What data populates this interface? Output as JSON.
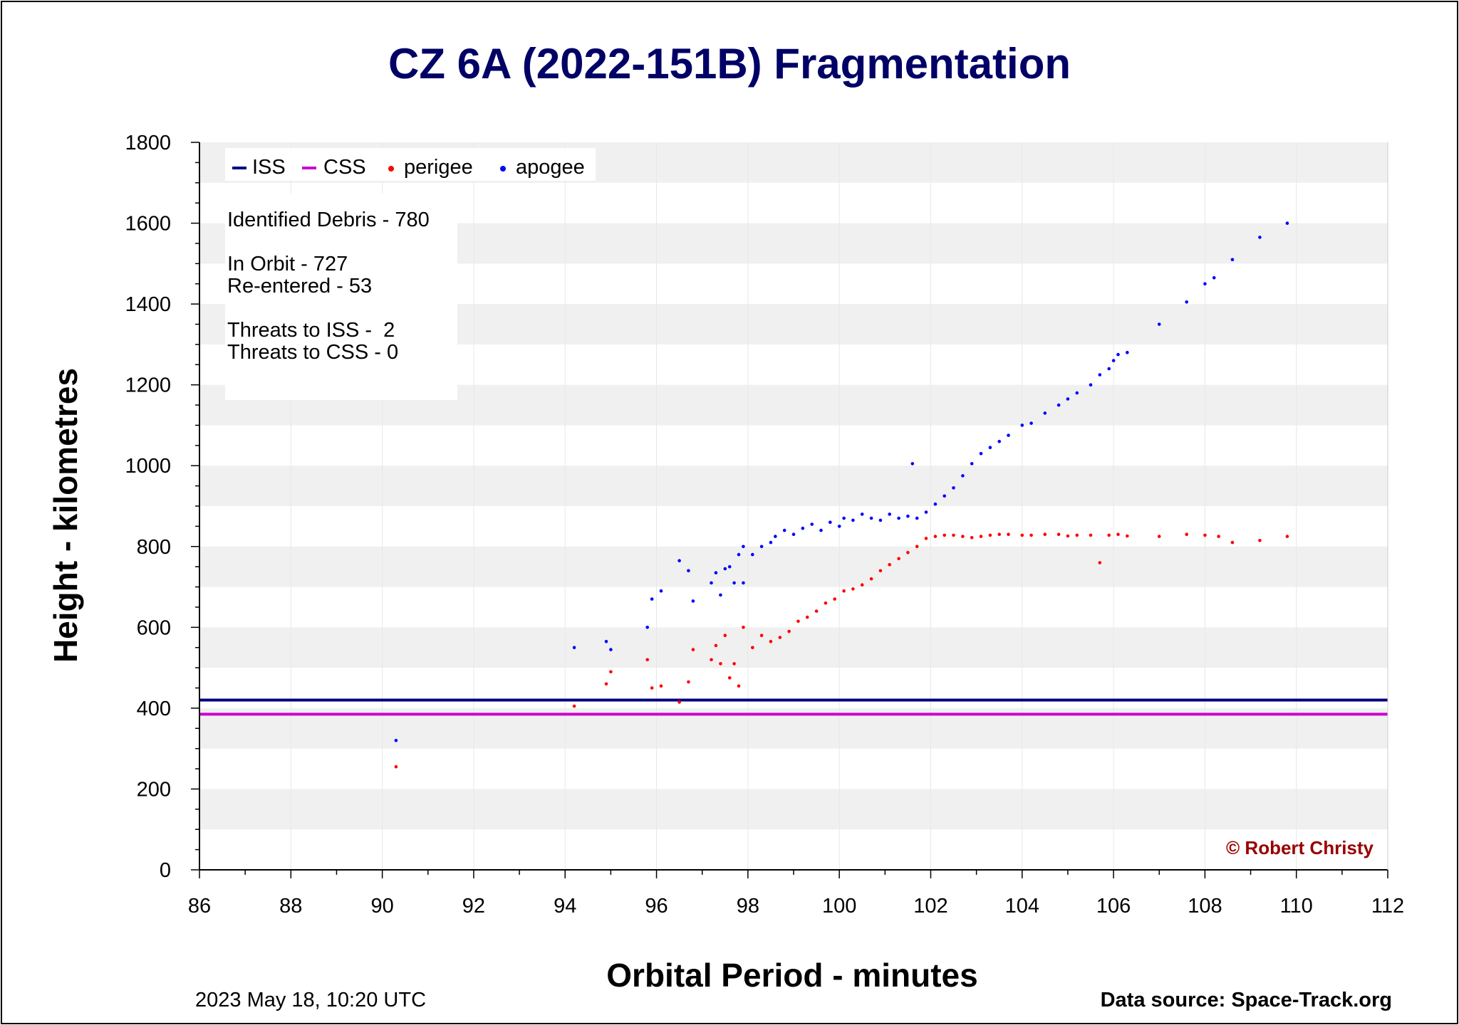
{
  "chart_data": {
    "type": "scatter",
    "title": "CZ 6A (2022-151B) Fragmentation",
    "xlabel": "Orbital Period - minutes",
    "ylabel": "Height - kilometres",
    "xlim": [
      86,
      112
    ],
    "ylim": [
      0,
      1800
    ],
    "x_ticks": [
      86,
      88,
      90,
      92,
      94,
      96,
      98,
      100,
      102,
      104,
      106,
      108,
      110,
      112
    ],
    "y_ticks": [
      0,
      200,
      400,
      600,
      800,
      1000,
      1200,
      1400,
      1600,
      1800
    ],
    "grid": "horizontal bands",
    "legend": {
      "placement": "top-left",
      "entries": [
        {
          "label": "ISS",
          "symbol": "line",
          "color": "#000080"
        },
        {
          "label": "CSS",
          "symbol": "line",
          "color": "#cc00cc"
        },
        {
          "label": "perigee",
          "symbol": "dot",
          "color": "#ff0000"
        },
        {
          "label": "apogee",
          "symbol": "dot",
          "color": "#0000ff"
        }
      ]
    },
    "reference_lines": [
      {
        "name": "ISS",
        "y": 420,
        "color": "#000080"
      },
      {
        "name": "CSS",
        "y": 385,
        "color": "#cc00cc"
      }
    ],
    "series": [
      {
        "name": "apogee",
        "color": "#0000ff",
        "points": [
          [
            90.3,
            320
          ],
          [
            94.2,
            550
          ],
          [
            94.9,
            565
          ],
          [
            95.0,
            545
          ],
          [
            95.8,
            600
          ],
          [
            95.9,
            670
          ],
          [
            96.1,
            690
          ],
          [
            96.5,
            765
          ],
          [
            96.7,
            740
          ],
          [
            96.8,
            665
          ],
          [
            97.2,
            710
          ],
          [
            97.3,
            735
          ],
          [
            97.4,
            680
          ],
          [
            97.5,
            745
          ],
          [
            97.6,
            750
          ],
          [
            97.7,
            710
          ],
          [
            97.8,
            780
          ],
          [
            97.9,
            710
          ],
          [
            97.9,
            800
          ],
          [
            98.1,
            780
          ],
          [
            98.3,
            800
          ],
          [
            98.5,
            810
          ],
          [
            98.6,
            825
          ],
          [
            98.8,
            840
          ],
          [
            99.0,
            830
          ],
          [
            99.2,
            845
          ],
          [
            99.4,
            855
          ],
          [
            99.6,
            840
          ],
          [
            99.8,
            860
          ],
          [
            100.0,
            850
          ],
          [
            100.1,
            870
          ],
          [
            100.3,
            865
          ],
          [
            100.5,
            880
          ],
          [
            100.7,
            870
          ],
          [
            100.9,
            865
          ],
          [
            101.1,
            880
          ],
          [
            101.3,
            870
          ],
          [
            101.5,
            875
          ],
          [
            101.6,
            1005
          ],
          [
            101.7,
            870
          ],
          [
            101.9,
            885
          ],
          [
            102.1,
            905
          ],
          [
            102.3,
            925
          ],
          [
            102.5,
            945
          ],
          [
            102.7,
            975
          ],
          [
            102.9,
            1005
          ],
          [
            103.1,
            1030
          ],
          [
            103.3,
            1045
          ],
          [
            103.5,
            1060
          ],
          [
            103.7,
            1075
          ],
          [
            104.0,
            1100
          ],
          [
            104.2,
            1105
          ],
          [
            104.5,
            1130
          ],
          [
            104.8,
            1150
          ],
          [
            105.0,
            1165
          ],
          [
            105.2,
            1180
          ],
          [
            105.5,
            1200
          ],
          [
            105.7,
            1225
          ],
          [
            105.9,
            1240
          ],
          [
            106.0,
            1260
          ],
          [
            106.1,
            1275
          ],
          [
            106.3,
            1280
          ],
          [
            107.0,
            1350
          ],
          [
            107.6,
            1405
          ],
          [
            108.0,
            1450
          ],
          [
            108.2,
            1465
          ],
          [
            108.6,
            1510
          ],
          [
            109.2,
            1565
          ],
          [
            109.8,
            1600
          ]
        ]
      },
      {
        "name": "perigee",
        "color": "#ff0000",
        "points": [
          [
            90.3,
            255
          ],
          [
            94.2,
            405
          ],
          [
            94.9,
            460
          ],
          [
            95.0,
            490
          ],
          [
            95.8,
            520
          ],
          [
            95.9,
            450
          ],
          [
            96.1,
            455
          ],
          [
            96.5,
            415
          ],
          [
            96.7,
            465
          ],
          [
            96.8,
            545
          ],
          [
            97.2,
            520
          ],
          [
            97.3,
            555
          ],
          [
            97.4,
            510
          ],
          [
            97.5,
            580
          ],
          [
            97.6,
            475
          ],
          [
            97.7,
            510
          ],
          [
            97.8,
            455
          ],
          [
            97.9,
            600
          ],
          [
            98.1,
            550
          ],
          [
            98.3,
            580
          ],
          [
            98.5,
            565
          ],
          [
            98.7,
            575
          ],
          [
            98.9,
            590
          ],
          [
            99.1,
            615
          ],
          [
            99.3,
            625
          ],
          [
            99.5,
            640
          ],
          [
            99.7,
            660
          ],
          [
            99.9,
            670
          ],
          [
            100.1,
            690
          ],
          [
            100.3,
            695
          ],
          [
            100.5,
            705
          ],
          [
            100.7,
            720
          ],
          [
            100.9,
            740
          ],
          [
            101.1,
            755
          ],
          [
            101.3,
            770
          ],
          [
            101.5,
            785
          ],
          [
            101.7,
            800
          ],
          [
            101.9,
            820
          ],
          [
            102.1,
            825
          ],
          [
            102.3,
            828
          ],
          [
            102.5,
            828
          ],
          [
            102.7,
            825
          ],
          [
            102.9,
            822
          ],
          [
            103.1,
            825
          ],
          [
            103.3,
            828
          ],
          [
            103.5,
            830
          ],
          [
            103.7,
            830
          ],
          [
            104.0,
            828
          ],
          [
            104.2,
            828
          ],
          [
            104.5,
            830
          ],
          [
            104.8,
            830
          ],
          [
            105.0,
            826
          ],
          [
            105.2,
            828
          ],
          [
            105.5,
            828
          ],
          [
            105.7,
            760
          ],
          [
            105.9,
            828
          ],
          [
            106.1,
            830
          ],
          [
            106.3,
            826
          ],
          [
            107.0,
            825
          ],
          [
            107.6,
            830
          ],
          [
            108.0,
            828
          ],
          [
            108.3,
            825
          ],
          [
            108.6,
            810
          ],
          [
            109.2,
            815
          ],
          [
            109.8,
            825
          ]
        ]
      }
    ],
    "annotations": {
      "identified_debris": "Identified Debris - 780",
      "in_orbit": "In Orbit - 727",
      "re_entered": "Re-entered - 53",
      "threats_iss": "Threats to ISS -  2",
      "threats_css": "Threats to CSS - 0",
      "copyright": "© Robert Christy",
      "date": "2023 May 18, 10:20 UTC",
      "source": "Data source: Space-Track.org"
    }
  }
}
